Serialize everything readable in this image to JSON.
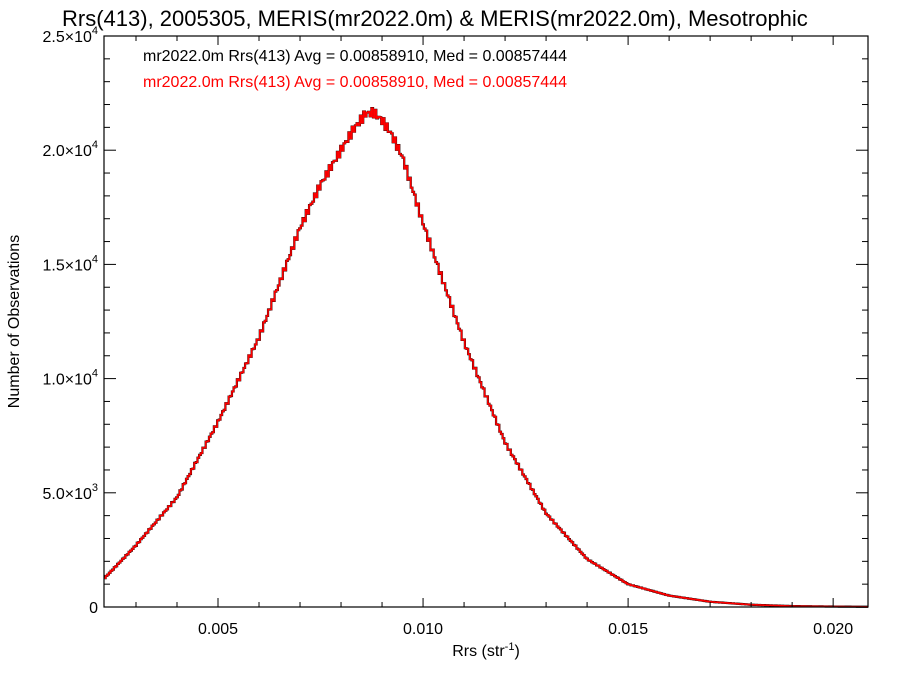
{
  "chart_data": {
    "type": "histogram",
    "title": "Rrs(413), 2005305, MERIS(mr2022.0m) & MERIS(mr2022.0m), Mesotrophic",
    "xlabel": "Rrs (str",
    "xlabel_sup": "-1",
    "xlabel_end": ")",
    "ylabel": "Number of Observations",
    "xlim": [
      0.00222,
      0.02085
    ],
    "ylim": [
      0,
      25000
    ],
    "x_ticks": [
      {
        "value": 0.005,
        "label": "0.005"
      },
      {
        "value": 0.01,
        "label": "0.010"
      },
      {
        "value": 0.015,
        "label": "0.015"
      },
      {
        "value": 0.02,
        "label": "0.020"
      }
    ],
    "y_ticks": [
      {
        "value": 0,
        "mant": "0",
        "exp": ""
      },
      {
        "value": 5000,
        "mant": "5.0×10",
        "exp": "3"
      },
      {
        "value": 10000,
        "mant": "1.0×10",
        "exp": "4"
      },
      {
        "value": 15000,
        "mant": "1.5×10",
        "exp": "4"
      },
      {
        "value": 20000,
        "mant": "2.0×10",
        "exp": "4"
      },
      {
        "value": 25000,
        "mant": "2.5×10",
        "exp": "4"
      }
    ],
    "series": [
      {
        "legend": "mr2022.0m Rrs(413) Avg = 0.00858910, Med = 0.00857444",
        "color": "#000000",
        "x": [
          0.0022,
          0.003,
          0.004,
          0.005,
          0.006,
          0.007,
          0.0075,
          0.008,
          0.0083,
          0.0086,
          0.0088,
          0.009,
          0.0092,
          0.0095,
          0.01,
          0.011,
          0.012,
          0.013,
          0.014,
          0.015,
          0.016,
          0.017,
          0.018,
          0.019,
          0.02,
          0.0208
        ],
        "y": [
          1200,
          2700,
          4800,
          8100,
          11800,
          16600,
          18500,
          20000,
          20900,
          21600,
          21650,
          21300,
          20800,
          19700,
          16800,
          11600,
          7200,
          4100,
          2100,
          1000,
          500,
          230,
          100,
          40,
          20,
          10
        ]
      },
      {
        "legend": "mr2022.0m Rrs(413) Avg = 0.00858910, Med = 0.00857444",
        "color": "#ff0000",
        "x": [
          0.0022,
          0.003,
          0.004,
          0.005,
          0.006,
          0.007,
          0.0075,
          0.008,
          0.0083,
          0.0086,
          0.0088,
          0.009,
          0.0092,
          0.0095,
          0.01,
          0.011,
          0.012,
          0.013,
          0.014,
          0.015,
          0.016,
          0.017,
          0.018,
          0.019,
          0.02,
          0.0208
        ],
        "y": [
          1200,
          2700,
          4800,
          8100,
          11800,
          16600,
          18500,
          20000,
          20900,
          21600,
          21650,
          21300,
          20800,
          19700,
          16800,
          11600,
          7200,
          4100,
          2100,
          1000,
          500,
          230,
          100,
          40,
          20,
          10
        ]
      }
    ]
  }
}
